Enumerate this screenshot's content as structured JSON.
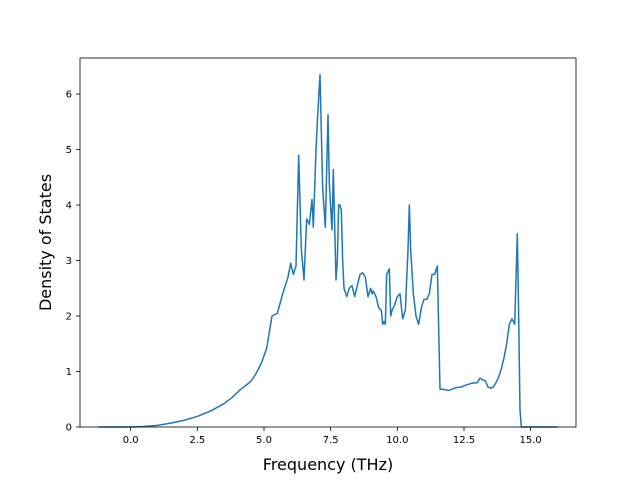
{
  "chart_data": {
    "type": "line",
    "title": "",
    "xlabel": "Frequency (THz)",
    "ylabel": "Density of States",
    "xlim": [
      -1.9,
      16.7
    ],
    "ylim": [
      0,
      6.65
    ],
    "grid": false,
    "color": "#1f77b4",
    "x_ticks": [
      {
        "value": 0.0,
        "label": "0.0"
      },
      {
        "value": 2.5,
        "label": "2.5"
      },
      {
        "value": 5.0,
        "label": "5.0"
      },
      {
        "value": 7.5,
        "label": "7.5"
      },
      {
        "value": 10.0,
        "label": "10.0"
      },
      {
        "value": 12.5,
        "label": "12.5"
      },
      {
        "value": 15.0,
        "label": "15.0"
      }
    ],
    "y_ticks": [
      {
        "value": 0,
        "label": "0"
      },
      {
        "value": 1,
        "label": "1"
      },
      {
        "value": 2,
        "label": "2"
      },
      {
        "value": 3,
        "label": "3"
      },
      {
        "value": 4,
        "label": "4"
      },
      {
        "value": 5,
        "label": "5"
      },
      {
        "value": 6,
        "label": "6"
      }
    ],
    "series": [
      {
        "x": [
          -1.2,
          -0.5,
          0.0,
          0.5,
          1.0,
          1.5,
          2.0,
          2.5,
          3.0,
          3.5,
          3.8,
          4.0,
          4.1,
          4.3,
          4.5,
          4.7,
          4.9,
          5.1,
          5.3,
          5.5,
          5.7,
          5.8,
          5.9,
          6.0,
          6.1,
          6.2,
          6.3,
          6.4,
          6.5,
          6.6,
          6.7,
          6.8,
          6.85,
          6.95,
          7.0,
          7.1,
          7.2,
          7.3,
          7.4,
          7.45,
          7.5,
          7.55,
          7.6,
          7.7,
          7.75,
          7.8,
          7.85,
          7.9,
          7.95,
          8.0,
          8.1,
          8.2,
          8.3,
          8.4,
          8.5,
          8.6,
          8.7,
          8.8,
          8.9,
          9.0,
          9.05,
          9.1,
          9.2,
          9.3,
          9.4,
          9.45,
          9.5,
          9.55,
          9.6,
          9.7,
          9.75,
          9.8,
          9.9,
          10.0,
          10.1,
          10.2,
          10.3,
          10.4,
          10.45,
          10.5,
          10.6,
          10.7,
          10.8,
          10.9,
          11.0,
          11.1,
          11.2,
          11.3,
          11.4,
          11.5,
          11.6,
          11.7,
          11.8,
          11.9,
          12.0,
          12.2,
          12.4,
          12.6,
          12.8,
          13.0,
          13.1,
          13.2,
          13.3,
          13.4,
          13.5,
          13.6,
          13.7,
          13.8,
          13.9,
          14.0,
          14.1,
          14.2,
          14.3,
          14.4,
          14.5,
          14.55,
          14.6,
          14.65,
          15.0,
          15.5,
          16.0
        ],
        "y": [
          0.0,
          0.0,
          0.0,
          0.01,
          0.03,
          0.07,
          0.12,
          0.19,
          0.29,
          0.42,
          0.53,
          0.62,
          0.67,
          0.74,
          0.82,
          0.96,
          1.15,
          1.42,
          2.0,
          2.05,
          2.4,
          2.55,
          2.7,
          2.95,
          2.75,
          2.9,
          4.9,
          3.2,
          2.65,
          3.75,
          3.65,
          4.1,
          3.6,
          5.0,
          5.5,
          6.35,
          4.3,
          3.6,
          5.63,
          4.4,
          3.95,
          3.55,
          4.64,
          2.65,
          3.0,
          4.0,
          4.0,
          3.9,
          3.0,
          2.5,
          2.35,
          2.5,
          2.55,
          2.35,
          2.55,
          2.75,
          2.78,
          2.7,
          2.35,
          2.5,
          2.4,
          2.45,
          2.35,
          2.15,
          2.1,
          1.85,
          1.9,
          1.85,
          2.75,
          2.85,
          2.0,
          2.1,
          2.2,
          2.35,
          2.4,
          1.95,
          2.1,
          3.2,
          4.0,
          3.2,
          2.4,
          2.0,
          1.85,
          2.15,
          2.3,
          2.3,
          2.4,
          2.75,
          2.75,
          2.9,
          0.68,
          0.68,
          0.67,
          0.66,
          0.67,
          0.71,
          0.72,
          0.76,
          0.79,
          0.8,
          0.88,
          0.85,
          0.83,
          0.72,
          0.7,
          0.72,
          0.8,
          0.9,
          1.05,
          1.25,
          1.5,
          1.85,
          1.95,
          1.85,
          3.48,
          2.0,
          0.3,
          0.0,
          0.0,
          0.0,
          0.0
        ]
      }
    ]
  }
}
